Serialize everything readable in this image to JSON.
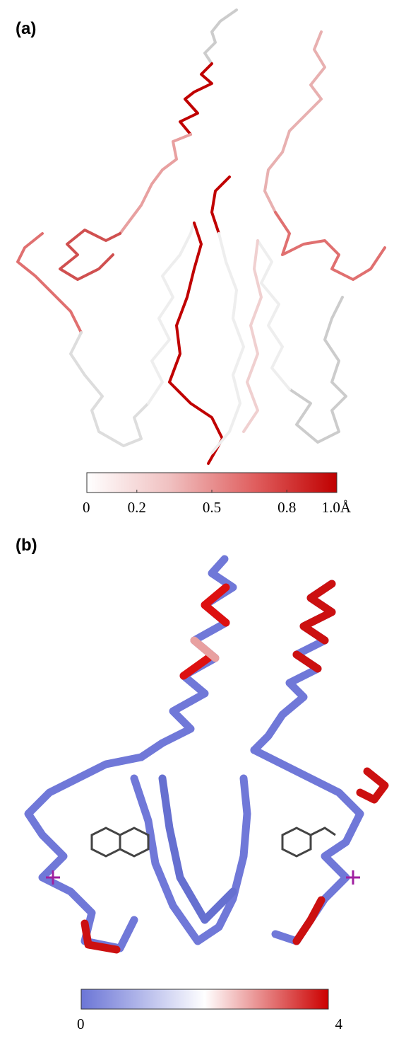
{
  "panels": [
    {
      "label": "(a)",
      "colorbar": {
        "range": [
          0,
          1.0
        ],
        "colors": [
          "#ffffff",
          "#f0c0c0",
          "#e06060",
          "#c00000"
        ],
        "ticks": [
          0,
          0.2,
          0.5,
          0.8,
          {
            "value": 1.0,
            "label": "1.0Å"
          }
        ]
      }
    },
    {
      "label": "(b)",
      "colorbar": {
        "range": [
          0,
          4
        ],
        "colors": [
          "#6b75d6",
          "#ffffff",
          "#cc0000"
        ],
        "ticks": [
          0,
          4
        ]
      }
    }
  ]
}
